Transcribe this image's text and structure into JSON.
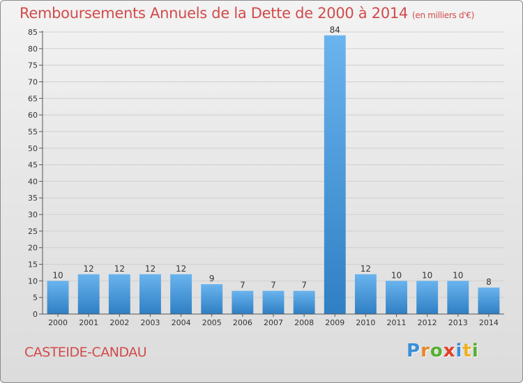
{
  "header": {
    "title": "Remboursements Annuels de la Dette de 2000 à 2014",
    "unit": "(en milliers d'€)"
  },
  "footer": {
    "commune": "CASTEIDE-CANDAU",
    "logo_letters": [
      "P",
      "r",
      "o",
      "x",
      "i",
      "t",
      "i"
    ],
    "logo_colors": [
      "#3a8fd8",
      "#e8862a",
      "#55b030",
      "#e0402a",
      "#3a8fd8",
      "#f0b020",
      "#55b030"
    ]
  },
  "colors": {
    "bar_top": "#6ab4ee",
    "bar_bottom": "#2f7fc4",
    "axis": "#555555",
    "grid": "#cfcfcf"
  },
  "chart_data": {
    "type": "bar",
    "title": "Remboursements Annuels de la Dette de 2000 à 2014",
    "xlabel": "",
    "ylabel": "",
    "ylim": [
      0,
      85
    ],
    "yticks": [
      0,
      5,
      10,
      15,
      20,
      25,
      30,
      35,
      40,
      45,
      50,
      55,
      60,
      65,
      70,
      75,
      80,
      85
    ],
    "categories": [
      "2000",
      "2001",
      "2002",
      "2003",
      "2004",
      "2005",
      "2006",
      "2007",
      "2008",
      "2009",
      "2010",
      "2011",
      "2012",
      "2013",
      "2014"
    ],
    "values": [
      10,
      12,
      12,
      12,
      12,
      9,
      7,
      7,
      7,
      84,
      12,
      10,
      10,
      10,
      8
    ],
    "grid": true
  }
}
